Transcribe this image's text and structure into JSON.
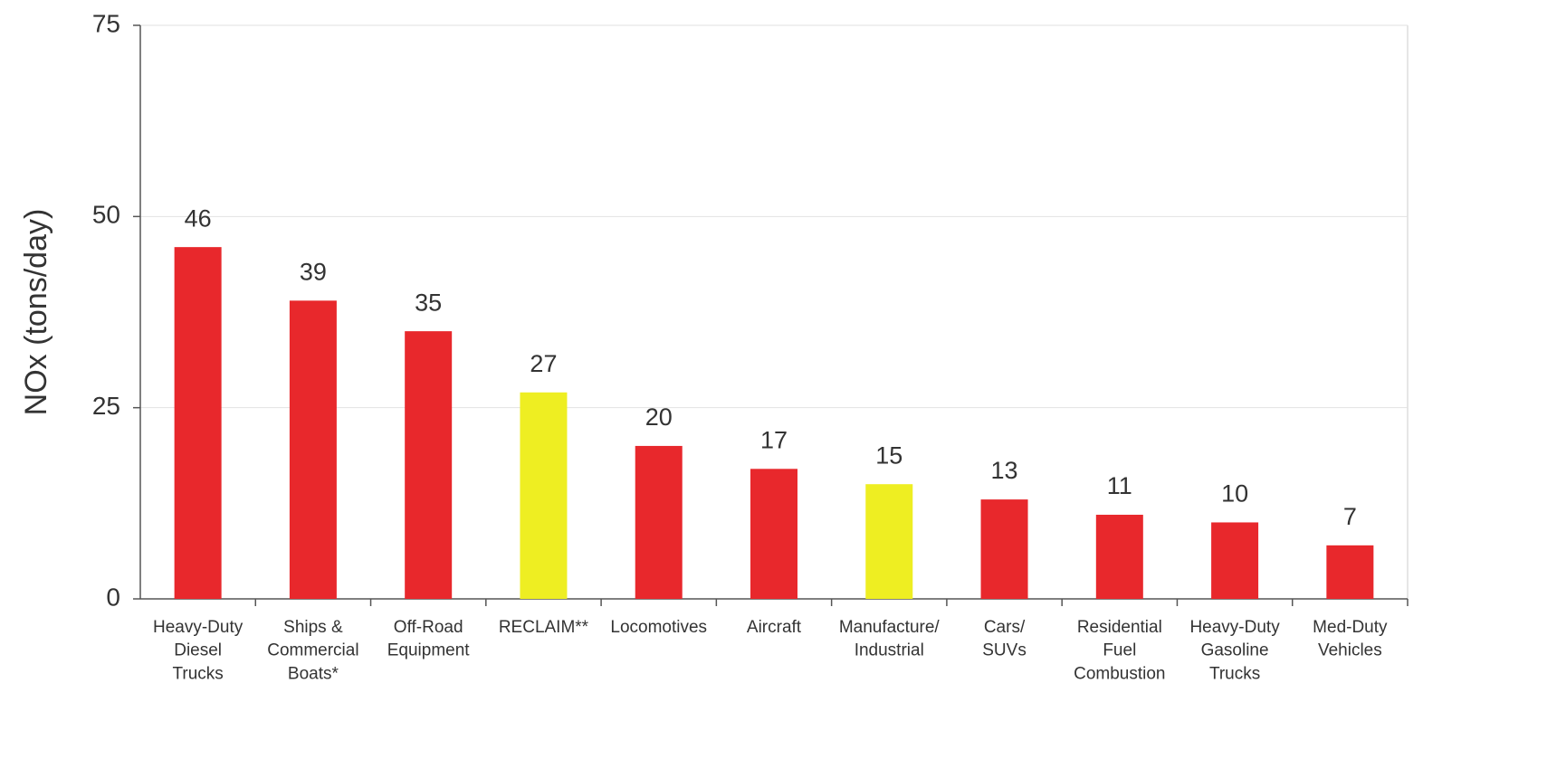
{
  "chart_data": {
    "type": "bar",
    "y_label": "NOx (tons/day)",
    "categories": [
      "Heavy-Duty\nDiesel\nTrucks",
      "Ships &\nCommercial\nBoats*",
      "Off-Road\nEquipment",
      "RECLAIM**",
      "Locomotives",
      "Aircraft",
      "Manufacture/\nIndustrial",
      "Cars/\nSUVs",
      "Residential\nFuel\nCombustion",
      "Heavy-Duty\nGasoline\nTrucks",
      "Med-Duty\nVehicles"
    ],
    "values": [
      46,
      39,
      35,
      27,
      20,
      17,
      15,
      13,
      11,
      10,
      7
    ],
    "colors": [
      "#e8282c",
      "#e8282c",
      "#e8282c",
      "#eeee22",
      "#e8282c",
      "#e8282c",
      "#eeee22",
      "#e8282c",
      "#e8282c",
      "#e8282c",
      "#e8282c"
    ],
    "ylim": [
      0,
      75
    ],
    "yticks": [
      0,
      25,
      50,
      75
    ],
    "grid": true
  }
}
